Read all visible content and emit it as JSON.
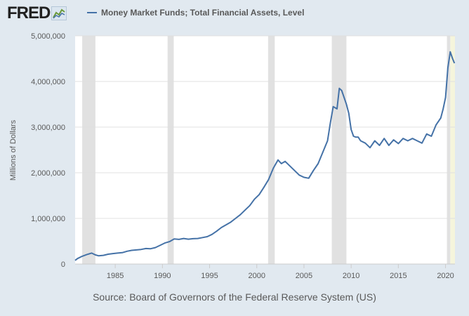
{
  "header": {
    "logo_text": "FRED",
    "logo_icon": "line-chart-icon"
  },
  "source": "Source: Board of Governors of the Federal Reserve System (US)",
  "colors": {
    "background": "#e1e9f0",
    "plot_background": "#ffffff",
    "line": "#4572a7",
    "recession": "#e1e1e1",
    "highlight": "#f5f5dc",
    "grid": "#e0e0e0"
  },
  "chart_data": {
    "type": "line",
    "title": "",
    "xlabel": "",
    "ylabel": "Millions of Dollars",
    "xlim": [
      1980.75,
      2021.0
    ],
    "ylim": [
      0,
      5000000
    ],
    "grid": true,
    "legend_placement": "top",
    "x_ticks": [
      1985,
      1990,
      1995,
      2000,
      2005,
      2010,
      2015,
      2020
    ],
    "x_tick_labels": [
      "1985",
      "1990",
      "1995",
      "2000",
      "2005",
      "2010",
      "2015",
      "2020"
    ],
    "y_ticks": [
      0,
      1000000,
      2000000,
      3000000,
      4000000,
      5000000
    ],
    "y_tick_labels": [
      "0",
      "1,000,000",
      "2,000,000",
      "3,000,000",
      "4,000,000",
      "5,000,000"
    ],
    "recessions": [
      [
        1981.5,
        1982.9
      ],
      [
        1990.55,
        1991.2
      ],
      [
        2001.2,
        2001.9
      ],
      [
        2007.95,
        2009.5
      ],
      [
        2020.15,
        2020.5
      ]
    ],
    "highlight_range": [
      2020.5,
      2021.0
    ],
    "series": [
      {
        "name": "Money Market Funds; Total Financial Assets, Level",
        "color": "#4572a7",
        "x": [
          1980.75,
          1981.0,
          1981.5,
          1982.0,
          1982.5,
          1982.9,
          1983.25,
          1983.75,
          1984.25,
          1984.75,
          1985.25,
          1985.75,
          1986.25,
          1986.75,
          1987.25,
          1987.75,
          1988.25,
          1988.75,
          1989.25,
          1989.75,
          1990.25,
          1990.75,
          1991.25,
          1991.75,
          1992.25,
          1992.75,
          1993.25,
          1993.75,
          1994.25,
          1994.75,
          1995.25,
          1995.75,
          1996.25,
          1996.75,
          1997.25,
          1997.75,
          1998.25,
          1998.75,
          1999.25,
          1999.75,
          2000.25,
          2000.75,
          2001.25,
          2001.75,
          2002.25,
          2002.6,
          2003.0,
          2003.5,
          2004.0,
          2004.5,
          2005.0,
          2005.5,
          2006.0,
          2006.5,
          2007.0,
          2007.5,
          2007.8,
          2008.1,
          2008.5,
          2008.75,
          2009.0,
          2009.25,
          2009.5,
          2009.75,
          2010.0,
          2010.25,
          2010.5,
          2010.75,
          2011.0,
          2011.5,
          2012.0,
          2012.5,
          2013.0,
          2013.5,
          2014.0,
          2014.5,
          2015.0,
          2015.5,
          2016.0,
          2016.5,
          2017.0,
          2017.5,
          2018.0,
          2018.5,
          2019.0,
          2019.5,
          2019.75,
          2020.0,
          2020.25,
          2020.5,
          2020.75,
          2020.95
        ],
        "y": [
          80000,
          120000,
          170000,
          210000,
          240000,
          200000,
          180000,
          190000,
          215000,
          230000,
          240000,
          250000,
          280000,
          300000,
          310000,
          320000,
          340000,
          335000,
          360000,
          410000,
          460000,
          490000,
          550000,
          540000,
          560000,
          545000,
          555000,
          560000,
          580000,
          600000,
          650000,
          720000,
          800000,
          860000,
          920000,
          1000000,
          1080000,
          1180000,
          1280000,
          1420000,
          1520000,
          1680000,
          1850000,
          2100000,
          2280000,
          2200000,
          2250000,
          2150000,
          2050000,
          1950000,
          1900000,
          1880000,
          2050000,
          2200000,
          2450000,
          2700000,
          3100000,
          3450000,
          3400000,
          3850000,
          3800000,
          3650000,
          3500000,
          3300000,
          2950000,
          2800000,
          2780000,
          2780000,
          2700000,
          2650000,
          2550000,
          2700000,
          2600000,
          2750000,
          2600000,
          2720000,
          2640000,
          2750000,
          2700000,
          2750000,
          2700000,
          2650000,
          2850000,
          2800000,
          3050000,
          3200000,
          3400000,
          3650000,
          4300000,
          4650000,
          4500000,
          4400000
        ]
      }
    ]
  }
}
